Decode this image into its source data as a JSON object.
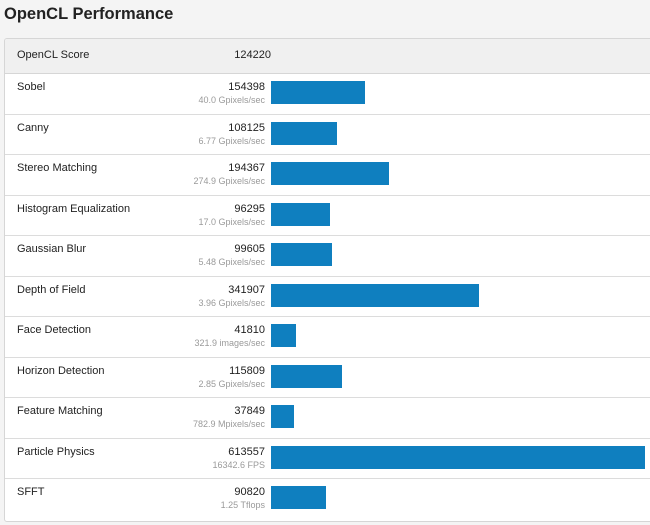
{
  "page": {
    "title": "OpenCL Performance"
  },
  "score": {
    "label": "OpenCL Score",
    "value": "124220"
  },
  "chart_data": {
    "type": "bar",
    "max_value": 613557,
    "bar_color": "#0f7fbf",
    "rows": [
      {
        "name": "Sobel",
        "score": 154398,
        "sub": "40.0 Gpixels/sec"
      },
      {
        "name": "Canny",
        "score": 108125,
        "sub": "6.77 Gpixels/sec"
      },
      {
        "name": "Stereo Matching",
        "score": 194367,
        "sub": "274.9 Gpixels/sec"
      },
      {
        "name": "Histogram Equalization",
        "score": 96295,
        "sub": "17.0 Gpixels/sec"
      },
      {
        "name": "Gaussian Blur",
        "score": 99605,
        "sub": "5.48 Gpixels/sec"
      },
      {
        "name": "Depth of Field",
        "score": 341907,
        "sub": "3.96 Gpixels/sec"
      },
      {
        "name": "Face Detection",
        "score": 41810,
        "sub": "321.9 images/sec"
      },
      {
        "name": "Horizon Detection",
        "score": 115809,
        "sub": "2.85 Gpixels/sec"
      },
      {
        "name": "Feature Matching",
        "score": 37849,
        "sub": "782.9 Mpixels/sec"
      },
      {
        "name": "Particle Physics",
        "score": 613557,
        "sub": "16342.6 FPS"
      },
      {
        "name": "SFFT",
        "score": 90820,
        "sub": "1.25 Tflops"
      }
    ]
  }
}
